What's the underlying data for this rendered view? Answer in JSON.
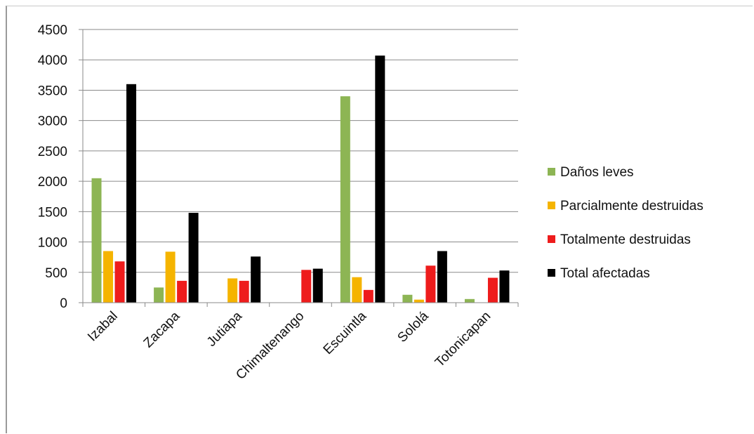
{
  "chart_data": {
    "type": "bar",
    "title": "",
    "xlabel": "",
    "ylabel": "",
    "ylim": [
      0,
      4500
    ],
    "yticks": [
      0,
      500,
      1000,
      1500,
      2000,
      2500,
      3000,
      3500,
      4000,
      4500
    ],
    "grid": true,
    "legend_position": "right",
    "categories": [
      "Izabal",
      "Zacapa",
      "Jutiapa",
      "Chimaltenango",
      "Escuintla",
      "Sololá",
      "Totonicapan"
    ],
    "series": [
      {
        "name": "Daños leves",
        "color": "#8db554",
        "values": [
          2050,
          250,
          0,
          0,
          3400,
          130,
          60
        ]
      },
      {
        "name": "Parcialmente destruidas",
        "color": "#f5b400",
        "values": [
          850,
          840,
          400,
          0,
          420,
          50,
          0
        ]
      },
      {
        "name": "Totalmente destruidas",
        "color": "#ee1c1c",
        "values": [
          680,
          360,
          360,
          540,
          210,
          610,
          410
        ]
      },
      {
        "name": "Total afectadas",
        "color": "#000000",
        "values": [
          3600,
          1480,
          760,
          560,
          4070,
          850,
          530
        ]
      }
    ]
  }
}
